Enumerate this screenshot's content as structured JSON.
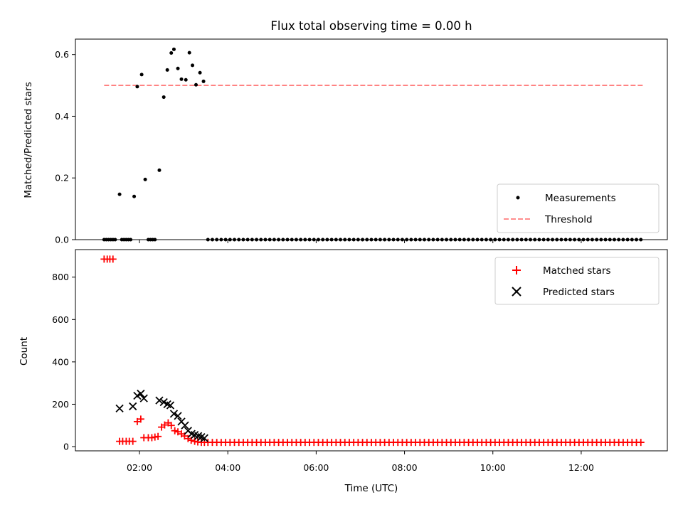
{
  "chart_data": {
    "title": "Flux total observing time = 0.00 h",
    "xlabel": "Time (UTC)",
    "x_units": "hours",
    "xlim": [
      0.55,
      13.95
    ],
    "xticks": [
      {
        "value": 2,
        "label": "02:00"
      },
      {
        "value": 4,
        "label": "04:00"
      },
      {
        "value": 6,
        "label": "06:00"
      },
      {
        "value": 8,
        "label": "08:00"
      },
      {
        "value": 10,
        "label": "10:00"
      },
      {
        "value": 12,
        "label": "12:00"
      }
    ],
    "panels": [
      {
        "id": "ratio",
        "type": "scatter",
        "ylabel": "Matched/Predicted stars",
        "ylim": [
          0,
          0.65
        ],
        "yticks": [
          {
            "value": 0.0,
            "label": "0.0"
          },
          {
            "value": 0.2,
            "label": "0.2"
          },
          {
            "value": 0.4,
            "label": "0.4"
          },
          {
            "value": 0.6,
            "label": "0.6"
          }
        ],
        "legend": [
          "Measurements",
          "Threshold"
        ],
        "threshold": {
          "name": "Threshold",
          "value": 0.5,
          "x_range": [
            1.2,
            13.4
          ],
          "color": "#ff7f7f"
        },
        "measurements": {
          "name": "Measurements",
          "color": "#000000",
          "x": [
            1.2,
            1.25,
            1.3,
            1.35,
            1.4,
            1.45,
            1.55,
            1.6,
            1.65,
            1.7,
            1.75,
            1.8,
            1.88,
            1.95,
            2.05,
            2.13,
            2.2,
            2.25,
            2.3,
            2.35,
            2.45,
            2.55,
            2.63,
            2.72,
            2.78,
            2.87,
            2.95,
            3.05,
            3.13,
            3.2,
            3.28,
            3.37,
            3.45
          ],
          "y": [
            0,
            0,
            0,
            0,
            0,
            0,
            0.147,
            0,
            0,
            0,
            0,
            0,
            0.14,
            0.496,
            0.535,
            0.195,
            0,
            0,
            0,
            0,
            0.225,
            0.462,
            0.55,
            0.605,
            0.617,
            0.555,
            0.52,
            0.518,
            0.606,
            0.565,
            0.502,
            0.541,
            0.513
          ],
          "tail_zero": {
            "start": 3.55,
            "end": 13.4,
            "step": 0.1,
            "value": 0
          }
        }
      },
      {
        "id": "count",
        "type": "scatter",
        "ylabel": "Count",
        "ylim": [
          -20,
          930
        ],
        "yticks": [
          {
            "value": 0,
            "label": "0"
          },
          {
            "value": 200,
            "label": "200"
          },
          {
            "value": 400,
            "label": "400"
          },
          {
            "value": 600,
            "label": "600"
          },
          {
            "value": 800,
            "label": "800"
          }
        ],
        "legend": [
          "Matched stars",
          "Predicted stars"
        ],
        "matched": {
          "name": "Matched stars",
          "color": "#ff0000",
          "x": [
            1.2,
            1.27,
            1.33,
            1.4,
            1.55,
            1.62,
            1.7,
            1.77,
            1.85,
            1.95,
            2.03,
            2.1,
            2.2,
            2.28,
            2.35,
            2.42,
            2.5,
            2.57,
            2.65,
            2.72,
            2.8,
            2.87,
            2.95,
            3.02,
            3.1,
            3.17,
            3.25,
            3.32,
            3.4,
            3.47
          ],
          "y": [
            885,
            885,
            885,
            885,
            25,
            25,
            25,
            25,
            25,
            118,
            130,
            42,
            42,
            42,
            45,
            48,
            92,
            102,
            112,
            100,
            75,
            70,
            60,
            50,
            38,
            30,
            25,
            22,
            20,
            20
          ],
          "tail": {
            "start": 3.55,
            "end": 13.4,
            "step": 0.1,
            "value": 20
          }
        },
        "predicted": {
          "name": "Predicted stars",
          "color": "#000000",
          "x": [
            1.55,
            1.85,
            1.95,
            2.03,
            2.1,
            2.45,
            2.55,
            2.63,
            2.7,
            2.78,
            2.87,
            2.95,
            3.03,
            3.1,
            3.18,
            3.25,
            3.33,
            3.4,
            3.47
          ],
          "y": [
            180,
            190,
            240,
            250,
            228,
            218,
            210,
            200,
            195,
            155,
            145,
            118,
            100,
            75,
            60,
            55,
            50,
            45,
            40
          ]
        }
      }
    ]
  }
}
